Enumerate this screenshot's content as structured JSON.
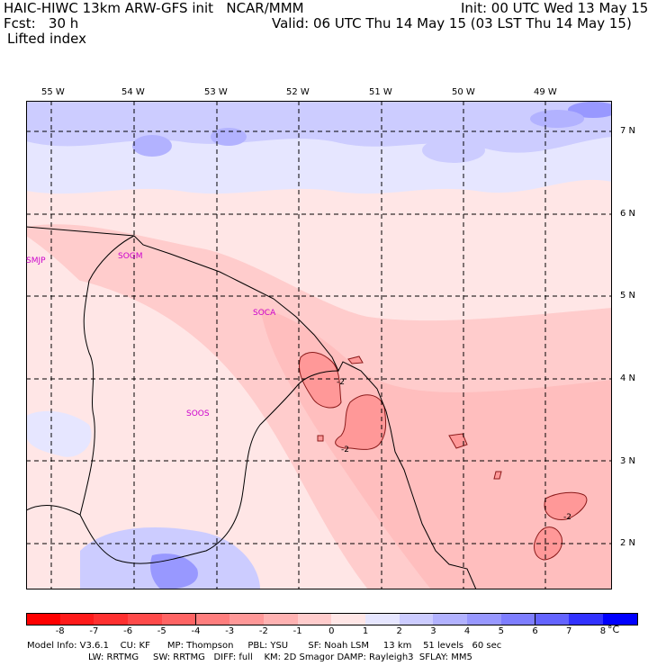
{
  "header": {
    "line1_left": "HAIC-HIWC 13km ARW-GFS init   NCAR/MMM",
    "line2_left": "Fcst:   30 h",
    "line3_left": "Lifted index",
    "line1_right": "Init: 00 UTC Wed 13 May 15",
    "line2_right": "Valid: 06 UTC Thu 14 May 15 (03 LST Thu 14 May 15)"
  },
  "map": {
    "lon_labels": [
      "55 W",
      "54 W",
      "53 W",
      "52 W",
      "51 W",
      "50 W",
      "49 W"
    ],
    "lat_labels": [
      "7 N",
      "6 N",
      "5 N",
      "4 N",
      "3 N",
      "2 N"
    ],
    "stations": [
      "SMJP",
      "SOGM",
      "SOCA",
      "SOOS"
    ],
    "contour_labels": [
      "-2",
      "-2",
      "-2"
    ]
  },
  "scale": {
    "labels": [
      "-8",
      "-7",
      "-6",
      "-5",
      "-4",
      "-3",
      "-2",
      "-1",
      "0",
      "1",
      "2",
      "3",
      "4",
      "5",
      "6",
      "7",
      "8"
    ],
    "unit": "°C",
    "colors": [
      "#ff1a1a",
      "#ff3030",
      "#ff4a4a",
      "#ff6464",
      "#ff7e7e",
      "#ff9898",
      "#ffb2b2",
      "#ffcccc",
      "#ffe6e6",
      "#e6e6ff",
      "#ccccff",
      "#b2b2ff",
      "#9898ff",
      "#7e7eff",
      "#6464ff",
      "#3232ff",
      "#0000ff"
    ]
  },
  "footer": {
    "line1": "Model Info: V3.6.1    CU: KF      MP: Thompson     PBL: YSU       SF: Noah LSM     13 km    51 levels   60 sec",
    "line2": "LW: RRTMG     SW: RRTMG   DIFF: full    KM: 2D Smagor DAMP: Rayleigh3  SFLAY: MM5"
  }
}
